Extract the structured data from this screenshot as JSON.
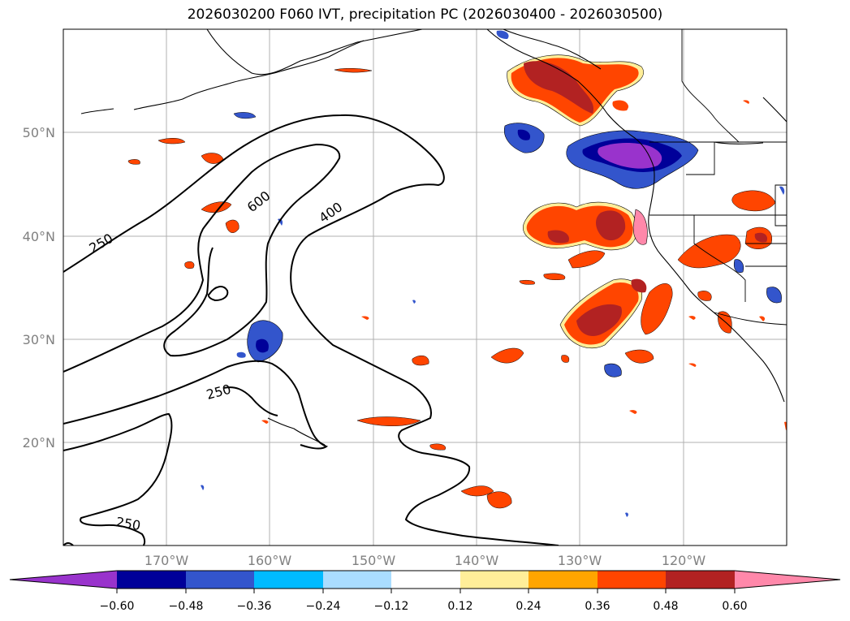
{
  "title": "2026030200 F060 IVT, precipitation PC (2026030400 - 2026030500)",
  "lat_labels": [
    "50°N",
    "40°N",
    "30°N",
    "20°N"
  ],
  "lon_labels": [
    "170°W",
    "160°W",
    "150°W",
    "140°W",
    "130°W",
    "120°W"
  ],
  "ivt_contour_labels": [
    "600",
    "400",
    "250",
    "250",
    "250"
  ],
  "colorbar": {
    "ticks": [
      "−0.60",
      "−0.48",
      "−0.36",
      "−0.24",
      "−0.12",
      "0.12",
      "0.24",
      "0.36",
      "0.48",
      "0.60"
    ],
    "colors": [
      "#9933cc",
      "#000099",
      "#3355cc",
      "#00bbff",
      "#aaddff",
      "#ffffff",
      "#ffee99",
      "#ffa500",
      "#ff4500",
      "#b22222",
      "#ff88aa"
    ]
  },
  "legend_colors": {
    "purple": "#9933cc",
    "navy": "#000099",
    "blue": "#3355cc",
    "sky": "#00bbff",
    "pale_blue": "#aaddff",
    "yellow": "#ffee99",
    "orange": "#ffa500",
    "red_orange": "#ff4500",
    "brick": "#b22222",
    "pink": "#ff88aa"
  }
}
